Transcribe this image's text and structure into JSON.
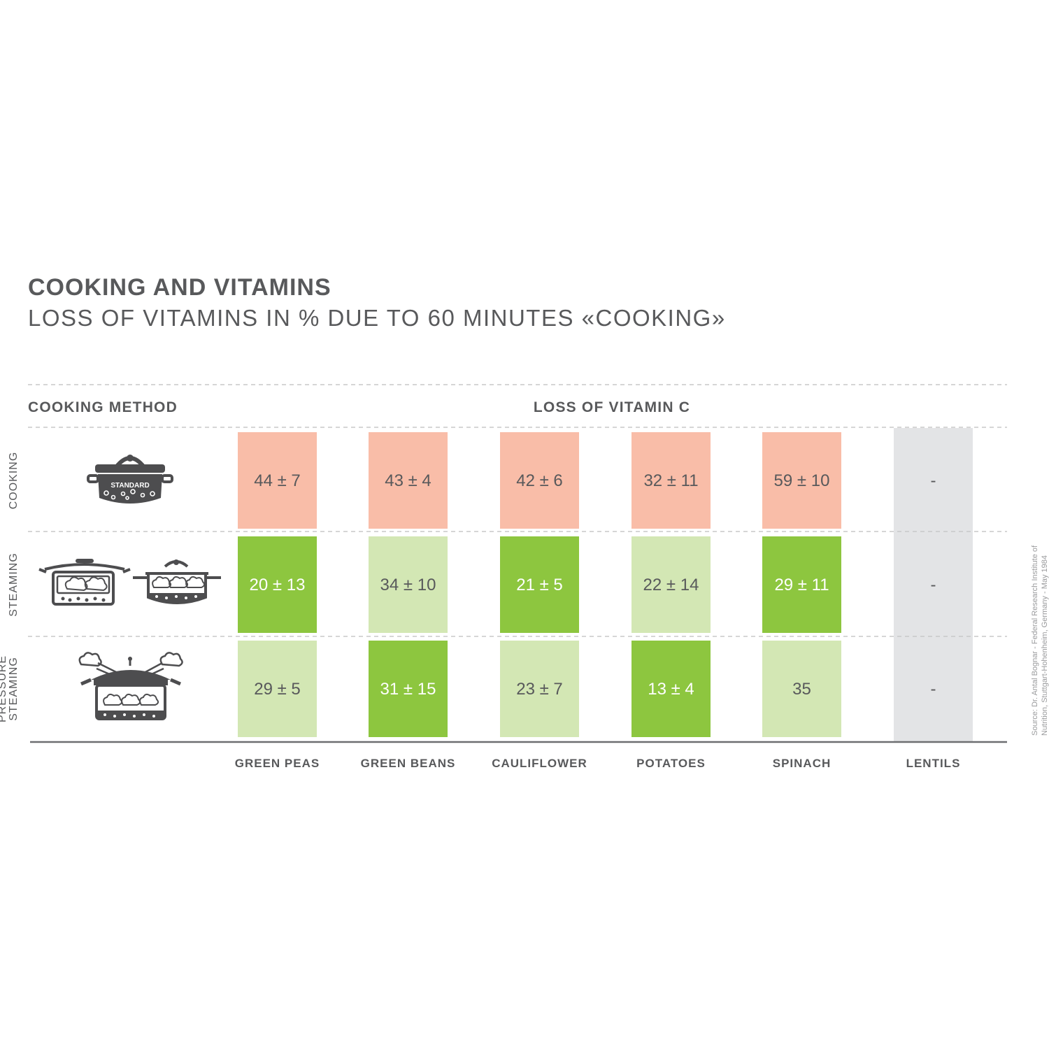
{
  "title": "COOKING AND VITAMINS",
  "subtitle": "LOSS OF VITAMINS IN % DUE TO 60 MINUTES «COOKING»",
  "header": {
    "method_label": "COOKING METHOD",
    "measure_label": "LOSS OF VITAMIN C"
  },
  "source_line1": "Source: Dr. Antal Bognar - Federal Research Institute of",
  "source_line2": "Nutrition, Stuttgart-Hohenheim, Germany - May 1984",
  "pot_badge": "STANDARD",
  "colors": {
    "high_loss": "#f9bda8",
    "low_loss": "#8dc63f",
    "mid_loss": "#d3e7b4",
    "no_data": "#e3e4e6",
    "text_dark": "#58595b",
    "text_on_green": "#ffffff",
    "grid_dash": "#c8c8c8",
    "baseline": "#6d6e71"
  },
  "chart_data": {
    "type": "table",
    "columns": [
      "GREEN PEAS",
      "GREEN BEANS",
      "CAULIFLOWER",
      "POTATOES",
      "SPINACH",
      "LENTILS"
    ],
    "rows": [
      {
        "method": "COOKING",
        "method_lines": [
          "COOKING"
        ],
        "icon": "standard-pot-icon",
        "cells": [
          {
            "text": "44 ± 7",
            "fill": "high_loss"
          },
          {
            "text": "43 ± 4",
            "fill": "high_loss"
          },
          {
            "text": "42 ± 6",
            "fill": "high_loss"
          },
          {
            "text": "32 ± 11",
            "fill": "high_loss"
          },
          {
            "text": "59 ± 10",
            "fill": "high_loss"
          },
          {
            "text": "-",
            "fill": "no_data"
          }
        ]
      },
      {
        "method": "STEAMING",
        "method_lines": [
          "STEAMING"
        ],
        "icon": "steamer-pots-icon",
        "cells": [
          {
            "text": "20 ± 13",
            "fill": "low_loss"
          },
          {
            "text": "34 ± 10",
            "fill": "mid_loss"
          },
          {
            "text": "21 ± 5",
            "fill": "low_loss"
          },
          {
            "text": "22 ± 14",
            "fill": "mid_loss"
          },
          {
            "text": "29 ± 11",
            "fill": "low_loss"
          },
          {
            "text": "-",
            "fill": "no_data"
          }
        ]
      },
      {
        "method": "PRESSURE STEAMING",
        "method_lines": [
          "PRESSURE",
          "STEAMING"
        ],
        "icon": "pressure-cooker-icon",
        "cells": [
          {
            "text": "29 ± 5",
            "fill": "mid_loss"
          },
          {
            "text": "31 ± 15",
            "fill": "low_loss"
          },
          {
            "text": "23 ± 7",
            "fill": "mid_loss"
          },
          {
            "text": "13 ± 4",
            "fill": "low_loss"
          },
          {
            "text": "35",
            "fill": "mid_loss"
          },
          {
            "text": "-",
            "fill": "no_data"
          }
        ]
      }
    ]
  }
}
